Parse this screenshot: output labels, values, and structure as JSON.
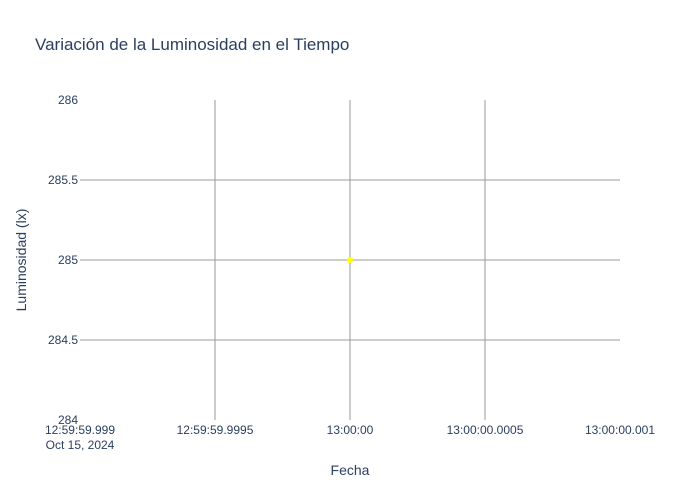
{
  "chart_data": {
    "type": "scatter",
    "title": "Variación de la Luminosidad en el Tiempo",
    "xlabel": "Fecha",
    "ylabel": "Luminosidad (lx)",
    "x_tick_labels": [
      "12:59:59.999",
      "12:59:59.9995",
      "13:00:00",
      "13:00:00.0005",
      "13:00:00.001"
    ],
    "x_tick_sublabel": "Oct 15, 2024",
    "x_ticks_ms_from_13h": [
      -1,
      -0.5,
      0,
      0.5,
      1
    ],
    "xlim_ms_from_13h": [
      -1,
      1
    ],
    "y_ticks": [
      284,
      284.5,
      285,
      285.5,
      286
    ],
    "ylim": [
      284,
      286
    ],
    "grid": true,
    "points": [
      {
        "x": "2024-10-15 13:00:00",
        "x_ms_from_13h": 0,
        "y": 285
      }
    ],
    "marker_color": "#ffff00"
  }
}
